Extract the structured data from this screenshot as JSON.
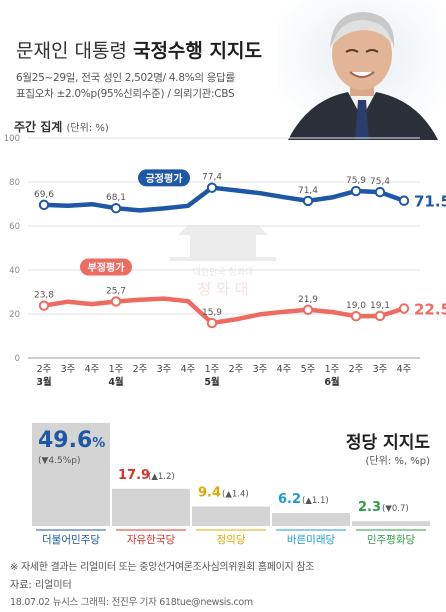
{
  "header": {
    "title_pre": "문재인 대통령 ",
    "title_bold": "국정수행 지지도",
    "subtitle_line1": "6월25~29일, 전국 성인 2,502명/ 4.8%의 응답률",
    "subtitle_line2": "표집오차 ±2.0%p(95%신뢰수준) / 의뢰기관:CBS"
  },
  "weekly": {
    "title": "주간 집계",
    "unit": "(단위: %)"
  },
  "watermark": {
    "line1": "대한민국 청와대",
    "line2": "청 와 대"
  },
  "chart_data": [
    {
      "type": "line",
      "title": "",
      "categories": [
        "2주",
        "3주",
        "4주",
        "1주",
        "2주",
        "3주",
        "4주",
        "1주",
        "2주",
        "3주",
        "4주",
        "5주",
        "1주",
        "2주",
        "3주",
        "4주"
      ],
      "month_labels": [
        {
          "index": 0,
          "label": "3월"
        },
        {
          "index": 3,
          "label": "4월"
        },
        {
          "index": 7,
          "label": "5월"
        },
        {
          "index": 12,
          "label": "6월"
        }
      ],
      "ylim": [
        0,
        100
      ],
      "yticks": [
        0,
        20,
        40,
        60,
        80,
        100
      ],
      "series": [
        {
          "name": "긍정평가",
          "color": "#1f57a7",
          "values": [
            69.6,
            69.2,
            69.9,
            68.1,
            67.1,
            68.0,
            69.2,
            77.4,
            76.2,
            74.9,
            73.1,
            71.4,
            73.0,
            75.9,
            75.4,
            71.5
          ],
          "labels": [
            {
              "index": 0,
              "text": "69,6"
            },
            {
              "index": 3,
              "text": "68,1"
            },
            {
              "index": 7,
              "text": "77,4"
            },
            {
              "index": 11,
              "text": "71,4"
            },
            {
              "index": 13,
              "text": "75,9"
            },
            {
              "index": 14,
              "text": "75,4"
            }
          ],
          "last_label": "71.5",
          "last_unit": "%"
        },
        {
          "name": "부정평가",
          "color": "#ee6b62",
          "values": [
            23.8,
            25.6,
            24.5,
            25.7,
            26.5,
            27.0,
            25.8,
            15.9,
            17.6,
            19.8,
            21.0,
            21.9,
            20.9,
            19.0,
            19.1,
            22.5
          ],
          "labels": [
            {
              "index": 0,
              "text": "23,8"
            },
            {
              "index": 3,
              "text": "25,7"
            },
            {
              "index": 7,
              "text": "15,9"
            },
            {
              "index": 11,
              "text": "21,9"
            },
            {
              "index": 13,
              "text": "19,0"
            },
            {
              "index": 14,
              "text": "19,1"
            }
          ],
          "last_label": "22.5",
          "last_unit": "%"
        }
      ]
    },
    {
      "type": "bar",
      "title": "정당 지지도",
      "unit": "(단위: %, %p)",
      "categories": [
        "더불어민주당",
        "자유한국당",
        "정의당",
        "바른미래당",
        "민주평화당"
      ],
      "values": [
        49.6,
        17.9,
        9.4,
        6.2,
        2.3
      ],
      "value_labels": [
        "49.6",
        "17.9",
        "9.4",
        "6.2",
        "2.3"
      ],
      "changes": [
        "(▼4.5%p)",
        "(▲1.2)",
        "(▲1.4)",
        "(▲1.1)",
        "(▼0.7)"
      ],
      "colors": [
        "#1f57a7",
        "#d9342b",
        "#e0a800",
        "#1a9bd6",
        "#2e9e48"
      ],
      "unit_mark": "%"
    }
  ],
  "footer": {
    "footnote": "※ 자세한 결과는 리얼미터 또는 중앙선거여론조사심의위원회 홈페이지 참조",
    "source": "자료: 리얼미터",
    "credit": "18.07.02 뉴시스 그래픽: 전진우 기자 618tue@newsis.com"
  }
}
